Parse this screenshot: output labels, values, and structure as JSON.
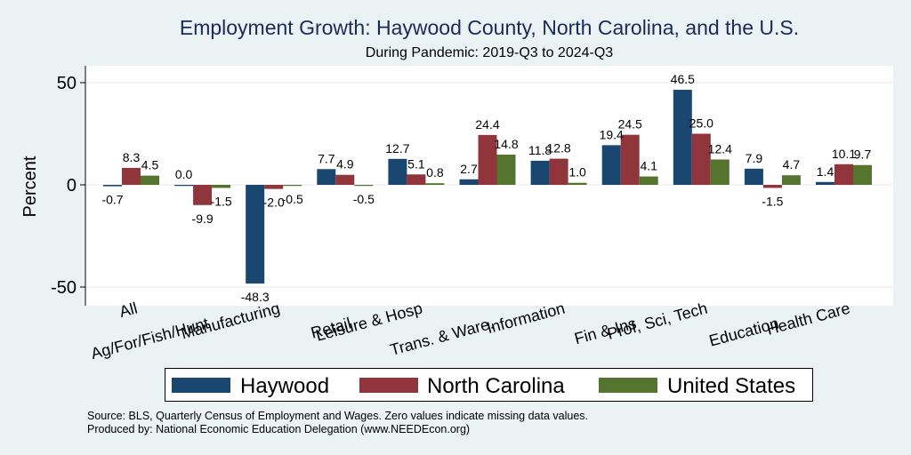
{
  "chart_data": {
    "type": "bar",
    "title": "Employment Growth: Haywood County, North Carolina, and the U.S.",
    "subtitle": "During Pandemic: 2019-Q3 to 2024-Q3",
    "ylabel": "Percent",
    "xlabel": "",
    "ylim": [
      -60,
      60
    ],
    "yticks": [
      -50,
      0,
      50
    ],
    "grid": true,
    "legend_position": "bottom",
    "categories": [
      "All",
      "Ag/For/Fish/Hunt",
      "Manufacturing",
      "Retail",
      "Leisure & Hosp",
      "Trans. & Ware.",
      "Information",
      "Fin & Ins",
      "Prof, Sci, Tech",
      "Education",
      "Health Care"
    ],
    "series": [
      {
        "name": "Haywood",
        "color": "#1a476f",
        "values": [
          -0.7,
          0.0,
          -48.3,
          7.7,
          12.7,
          2.7,
          11.8,
          19.4,
          46.5,
          7.9,
          1.4
        ],
        "labels": [
          "-0.7",
          "0.0",
          "-48.3",
          "7.7",
          "12.7",
          "2.7",
          "11.8",
          "19.4",
          "46.5",
          "7.9",
          "1.4"
        ]
      },
      {
        "name": "North Carolina",
        "color": "#90353b",
        "values": [
          8.3,
          -9.9,
          -2.0,
          4.9,
          5.1,
          24.4,
          12.8,
          24.5,
          25.0,
          -1.5,
          10.1
        ],
        "labels": [
          "8.3",
          "-9.9",
          "-2.0",
          "4.9",
          "5.1",
          "24.4",
          "12.8",
          "24.5",
          "25.0",
          "-1.5",
          "10.1"
        ]
      },
      {
        "name": "United States",
        "color": "#55752f",
        "values": [
          4.5,
          -1.5,
          -0.5,
          -0.5,
          0.8,
          14.8,
          1.0,
          4.1,
          12.4,
          4.7,
          9.7
        ],
        "labels": [
          "4.5",
          "-1.5",
          "-0.5",
          "-0.5",
          "0.8",
          "14.8",
          "1.0",
          "4.1",
          "12.4",
          "4.7",
          "9.7"
        ]
      }
    ]
  },
  "notes": {
    "source": "Source: BLS, Quarterly Census of Employment and Wages. Zero values indicate missing data values.",
    "produced": "Produced by: National Economic Education Delegation (www.NEEDEcon.org)"
  }
}
